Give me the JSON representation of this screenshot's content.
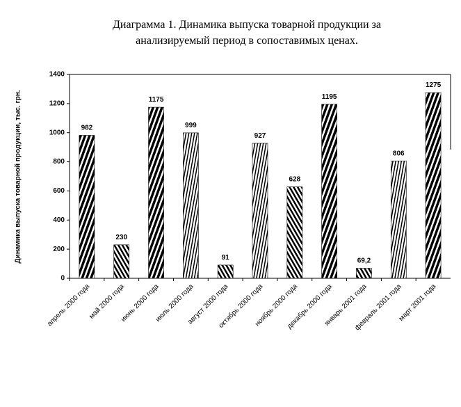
{
  "chart_data": {
    "type": "bar",
    "title": [
      "Диаграмма 1. Динамика выпуска товарной продукции за",
      "анализируемый период в сопоставимых ценах."
    ],
    "y_label": "Динамика выпуска товарной продукции, тыс. грн.",
    "categories": [
      "апрель 2000 года",
      "май 2000 года",
      "июнь 2000 года",
      "июль 2000 года",
      "август 2000 года",
      "октябрь 2000 года",
      "ноябрь 2000 года",
      "декабрь 2000 года",
      "январь 2001 года",
      "февраль 2001 года",
      "март 2001 года"
    ],
    "values": [
      982,
      230,
      1175,
      999,
      91,
      927,
      628,
      1195,
      69.2,
      806,
      1275
    ],
    "value_labels": [
      "982",
      "230",
      "1175",
      "999",
      "91",
      "927",
      "628",
      "1195",
      "69,2",
      "806",
      "1275"
    ],
    "color": "#000000",
    "ylim": [
      0,
      1400
    ],
    "yticks": [
      0,
      200,
      400,
      600,
      800,
      1000,
      1200,
      1400
    ]
  }
}
